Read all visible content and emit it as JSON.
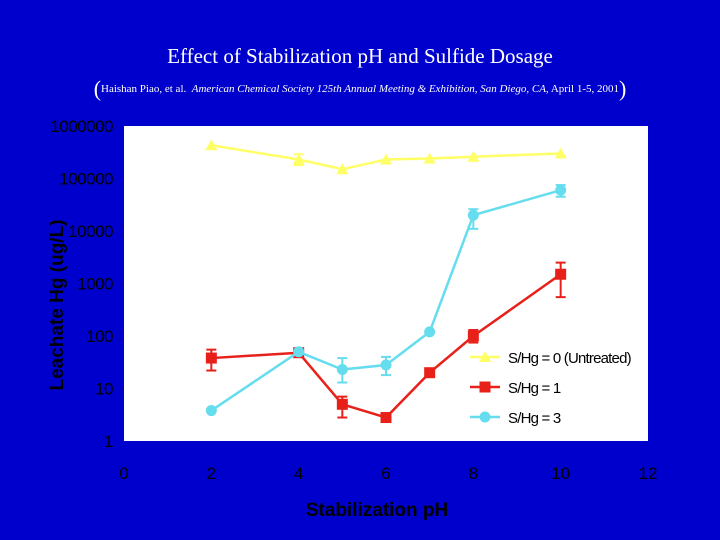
{
  "header": {
    "title": "Effect of Stabilization pH and Sulfide Dosage",
    "citation_open": "(",
    "citation_authors": "Haishan Piao, et al.",
    "citation_venue": "American Chemical Society 125th Annual Meeting & Exhibition, San Diego, CA,",
    "citation_date": "April 1-5, 2001",
    "citation_close": ")"
  },
  "colors": {
    "background": "#0000cc",
    "plot_background": "#ffffff",
    "axis_text": "#000000",
    "untreated": "#ffff66",
    "sh1": "#e8201a",
    "sh3": "#66ddee"
  },
  "chart_data": {
    "type": "line",
    "xlabel": "Stabilization pH",
    "ylabel": "Leachate Hg (ug/L)",
    "xlim": [
      0,
      12
    ],
    "ylim": [
      1,
      1000000
    ],
    "yscale": "log",
    "x_ticks": [
      "0",
      "2",
      "4",
      "6",
      "8",
      "10",
      "12"
    ],
    "y_ticks": [
      "1",
      "10",
      "100",
      "1000",
      "10000",
      "100000",
      "1000000"
    ],
    "grid": false,
    "legend_position": "bottom-right",
    "series": [
      {
        "name": "S/Hg = 0 (Untreated)",
        "marker": "triangle",
        "color": "#ffff66",
        "x": [
          2,
          4,
          5,
          6,
          7,
          8,
          10
        ],
        "y": [
          430000,
          230000,
          150000,
          230000,
          240000,
          260000,
          300000
        ],
        "error": [
          null,
          [
            180000,
            290000
          ],
          null,
          null,
          null,
          null,
          null
        ]
      },
      {
        "name": "S/Hg = 1",
        "marker": "square",
        "color": "#e8201a",
        "x": [
          2,
          4,
          5,
          6,
          7,
          8,
          10
        ],
        "y": [
          38,
          48,
          5,
          2.8,
          20,
          100,
          1500
        ],
        "error": [
          [
            22,
            55
          ],
          null,
          [
            2.8,
            7
          ],
          null,
          null,
          [
            75,
            130
          ],
          [
            550,
            2500
          ]
        ]
      },
      {
        "name": "S/Hg = 3",
        "marker": "circle",
        "color": "#66ddee",
        "x": [
          2,
          4,
          5,
          6,
          7,
          8,
          10
        ],
        "y": [
          3.8,
          50,
          23,
          28,
          120,
          20000,
          60000
        ],
        "error": [
          null,
          null,
          [
            13,
            38
          ],
          [
            18,
            40
          ],
          null,
          [
            11000,
            26000
          ],
          [
            45000,
            75000
          ]
        ]
      }
    ]
  }
}
